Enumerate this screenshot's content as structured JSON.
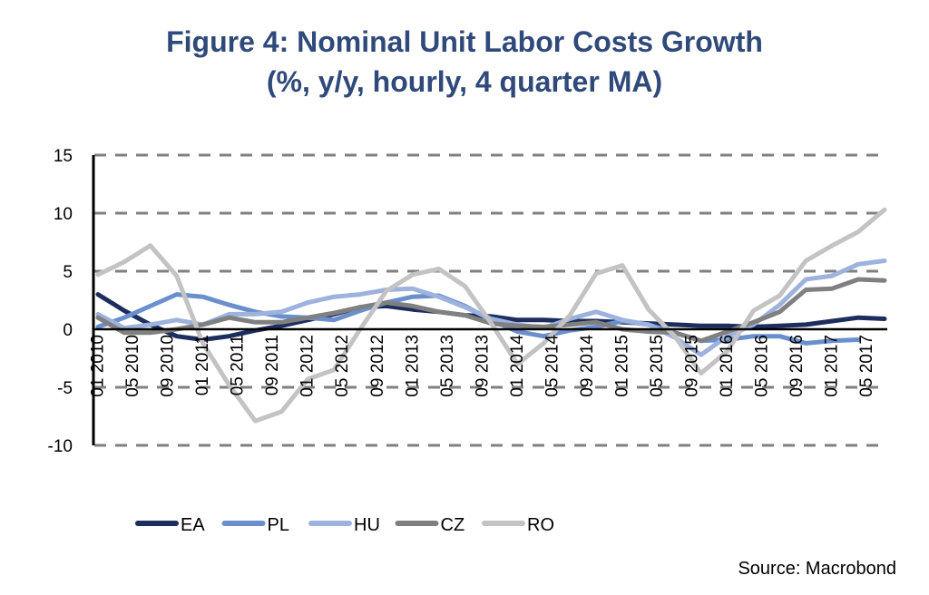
{
  "chart_data": {
    "type": "line",
    "title": "Figure 4: Nominal Unit Labor Costs Growth",
    "subtitle": "(%, y/y, hourly, 4 quarter MA)",
    "xlabel": "",
    "ylabel": "",
    "ylim": [
      -10,
      15
    ],
    "yticks": [
      "15",
      "10",
      "5",
      "0",
      "-5",
      "-10"
    ],
    "ytick_values": [
      15,
      10,
      5,
      0,
      -5,
      -10
    ],
    "x_frequency": "quarterly",
    "x": [
      "2010Q1",
      "2010Q2",
      "2010Q3",
      "2010Q4",
      "2011Q1",
      "2011Q2",
      "2011Q3",
      "2011Q4",
      "2012Q1",
      "2012Q2",
      "2012Q3",
      "2012Q4",
      "2013Q1",
      "2013Q2",
      "2013Q3",
      "2013Q4",
      "2014Q1",
      "2014Q2",
      "2014Q3",
      "2014Q4",
      "2015Q1",
      "2015Q2",
      "2015Q3",
      "2015Q4",
      "2016Q1",
      "2016Q2",
      "2016Q3",
      "2016Q4",
      "2017Q1",
      "2017Q2",
      "2017Q3"
    ],
    "xticks": [
      "01 2010",
      "05 2010",
      "09 2010",
      "01 2011",
      "05 2011",
      "09 2011",
      "01 2012",
      "05 2012",
      "09 2012",
      "01 2013",
      "05 2013",
      "09 2013",
      "01 2014",
      "05 2014",
      "09 2014",
      "01 2015",
      "05 2015",
      "09 2015",
      "01 2016",
      "05 2016",
      "09 2016",
      "01 2017",
      "05 2017"
    ],
    "grid": true,
    "legend_position": "bottom",
    "series": [
      {
        "name": "EA",
        "color": "#1c2d5e",
        "values": [
          3.0,
          1.6,
          0.4,
          -0.6,
          -0.9,
          -0.6,
          -0.1,
          0.3,
          0.8,
          1.3,
          1.9,
          2.0,
          1.7,
          1.5,
          1.2,
          1.1,
          0.8,
          0.8,
          0.7,
          0.7,
          0.6,
          0.5,
          0.4,
          0.3,
          0.3,
          0.2,
          0.3,
          0.4,
          0.7,
          1.0,
          0.9
        ]
      },
      {
        "name": "PL",
        "color": "#6a8fcd",
        "values": [
          0.2,
          1.0,
          2.0,
          3.0,
          2.8,
          2.1,
          1.5,
          1.1,
          1.0,
          0.8,
          1.6,
          2.3,
          2.8,
          2.9,
          2.0,
          0.8,
          -0.2,
          -0.6,
          -0.1,
          0.2,
          0.7,
          0.4,
          -0.3,
          -1.0,
          -0.9,
          -0.6,
          -0.6,
          -1.2,
          -1.0,
          -0.9,
          null
        ]
      },
      {
        "name": "HU",
        "color": "#9db2dc",
        "values": [
          1.3,
          0.1,
          0.4,
          0.8,
          0.4,
          1.3,
          1.3,
          1.5,
          2.3,
          2.8,
          3.0,
          3.4,
          3.5,
          2.8,
          1.9,
          0.9,
          0.4,
          0.1,
          0.9,
          1.5,
          0.8,
          0.4,
          -0.7,
          -2.2,
          -0.6,
          0.4,
          2.1,
          4.3,
          4.6,
          5.6,
          5.9
        ]
      },
      {
        "name": "CZ",
        "color": "#808080",
        "values": [
          1.0,
          -0.3,
          -0.3,
          0.0,
          0.4,
          1.0,
          0.6,
          0.6,
          1.0,
          1.4,
          1.9,
          2.3,
          2.0,
          1.5,
          1.2,
          0.5,
          0.3,
          0.2,
          0.4,
          0.6,
          0.0,
          -0.2,
          -0.3,
          -1.0,
          -0.2,
          0.6,
          1.5,
          3.4,
          3.5,
          4.3,
          4.2
        ]
      },
      {
        "name": "RO",
        "color": "#c3c3c3",
        "values": [
          4.7,
          5.8,
          7.2,
          4.6,
          -1.2,
          -4.8,
          -7.9,
          -7.1,
          -4.3,
          -3.5,
          0.0,
          3.3,
          4.7,
          5.2,
          3.7,
          0.5,
          -3.0,
          -1.2,
          1.2,
          4.8,
          5.5,
          1.7,
          -0.6,
          -3.8,
          -1.9,
          1.6,
          2.9,
          5.9,
          7.2,
          8.4,
          10.3
        ]
      }
    ],
    "source": "Source: Macrobond"
  }
}
